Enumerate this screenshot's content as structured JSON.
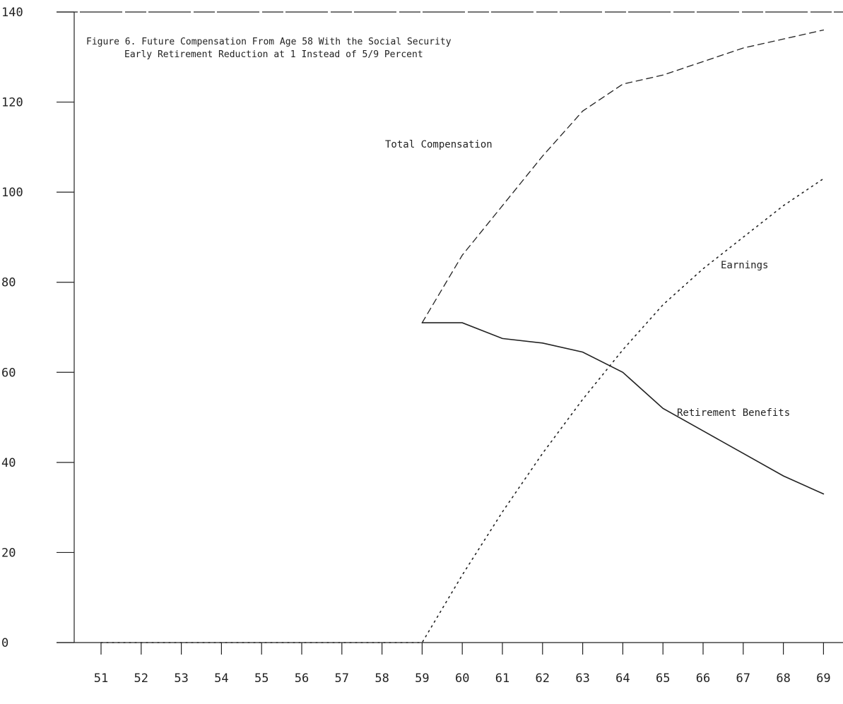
{
  "chart_data": {
    "type": "line",
    "title": "Figure 6.  Future Compensation From Age 58 With the Social Security",
    "subtitle": "Early Retirement Reduction at 1 Instead of 5/9 Percent",
    "xlabel": "",
    "ylabel": "",
    "x": [
      51,
      52,
      53,
      54,
      55,
      56,
      57,
      58,
      59,
      60,
      61,
      62,
      63,
      64,
      65,
      66,
      67,
      68,
      69
    ],
    "x_tick_labels": [
      "51",
      "52",
      "53",
      "54",
      "55",
      "56",
      "57",
      "58",
      "59",
      "60",
      "61",
      "62",
      "63",
      "64",
      "65",
      "66",
      "67",
      "68",
      "69"
    ],
    "y_tick_labels": [
      "0",
      "20",
      "40",
      "60",
      "80",
      "100",
      "120",
      "140"
    ],
    "ylim": [
      0,
      140
    ],
    "xlim": [
      50.3,
      69.5
    ],
    "grid": false,
    "legend": "none",
    "series": [
      {
        "name": "Total Compensation",
        "style": "dashed",
        "values": [
          null,
          null,
          null,
          null,
          null,
          null,
          null,
          null,
          71,
          86,
          97,
          108,
          118,
          124,
          126,
          129,
          132,
          134,
          136
        ]
      },
      {
        "name": "Earnings",
        "style": "dotted",
        "values": [
          0,
          0,
          0,
          0,
          0,
          0,
          0,
          0,
          0,
          15,
          29,
          42,
          54,
          65,
          75,
          83,
          90,
          97,
          103
        ]
      },
      {
        "name": "Retirement Benefits",
        "style": "solid",
        "values": [
          null,
          null,
          null,
          null,
          null,
          null,
          null,
          null,
          71,
          71,
          67.5,
          66.5,
          64.5,
          60,
          52,
          47,
          42,
          37,
          33
        ]
      }
    ]
  }
}
